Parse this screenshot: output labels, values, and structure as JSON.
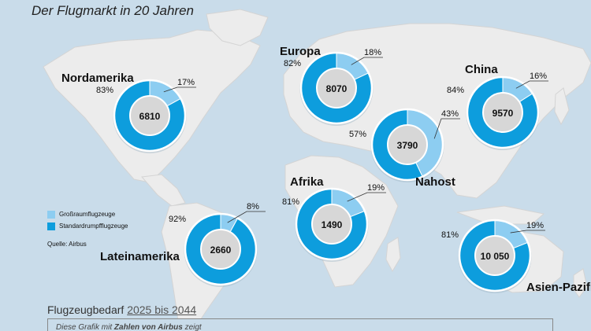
{
  "title": "Der Flugmarkt in 20 Jahren",
  "colors": {
    "widebody": "#8dcdf1",
    "narrowbody": "#0d9ddd",
    "center": "#d7d7d7",
    "ocean": "#c9dcea",
    "land": "#ececec"
  },
  "legend": [
    {
      "label": "Großraumflugzeuge",
      "color": "#8dcdf1"
    },
    {
      "label": "Standardrumpfflugzeuge",
      "color": "#0d9ddd"
    }
  ],
  "source": "Quelle: Airbus",
  "footer": {
    "title": "Flugzeugbedarf",
    "years": "2025 bis 2044",
    "note_start": "Diese Grafik mit",
    "note_emph": "Zahlen von Airbus",
    "note_end": "zeigt"
  },
  "chart_data": {
    "type": "pie",
    "title": "Der Flugmarkt in 20 Jahren",
    "series_names": [
      "Großraumflugzeuge",
      "Standardrumpfflugzeuge"
    ],
    "regions": [
      {
        "name": "Nordamerika",
        "total": "6810",
        "widebody_pct": 17,
        "narrowbody_pct": 83,
        "widebody_label": "17%",
        "narrowbody_label": "83%"
      },
      {
        "name": "Europa",
        "total": "8070",
        "widebody_pct": 18,
        "narrowbody_pct": 82,
        "widebody_label": "18%",
        "narrowbody_label": "82%"
      },
      {
        "name": "China",
        "total": "9570",
        "widebody_pct": 16,
        "narrowbody_pct": 84,
        "widebody_label": "16%",
        "narrowbody_label": "84%"
      },
      {
        "name": "Nahost",
        "total": "3790",
        "widebody_pct": 43,
        "narrowbody_pct": 57,
        "widebody_label": "43%",
        "narrowbody_label": "57%"
      },
      {
        "name": "Afrika",
        "total": "1490",
        "widebody_pct": 19,
        "narrowbody_pct": 81,
        "widebody_label": "19%",
        "narrowbody_label": "81%"
      },
      {
        "name": "Lateinamerika",
        "total": "2660",
        "widebody_pct": 8,
        "narrowbody_pct": 92,
        "widebody_label": "8%",
        "narrowbody_label": "92%"
      },
      {
        "name": "Asien-Pazifik",
        "total": "10 050",
        "widebody_pct": 19,
        "narrowbody_pct": 81,
        "widebody_label": "19%",
        "narrowbody_label": "81%"
      }
    ]
  }
}
